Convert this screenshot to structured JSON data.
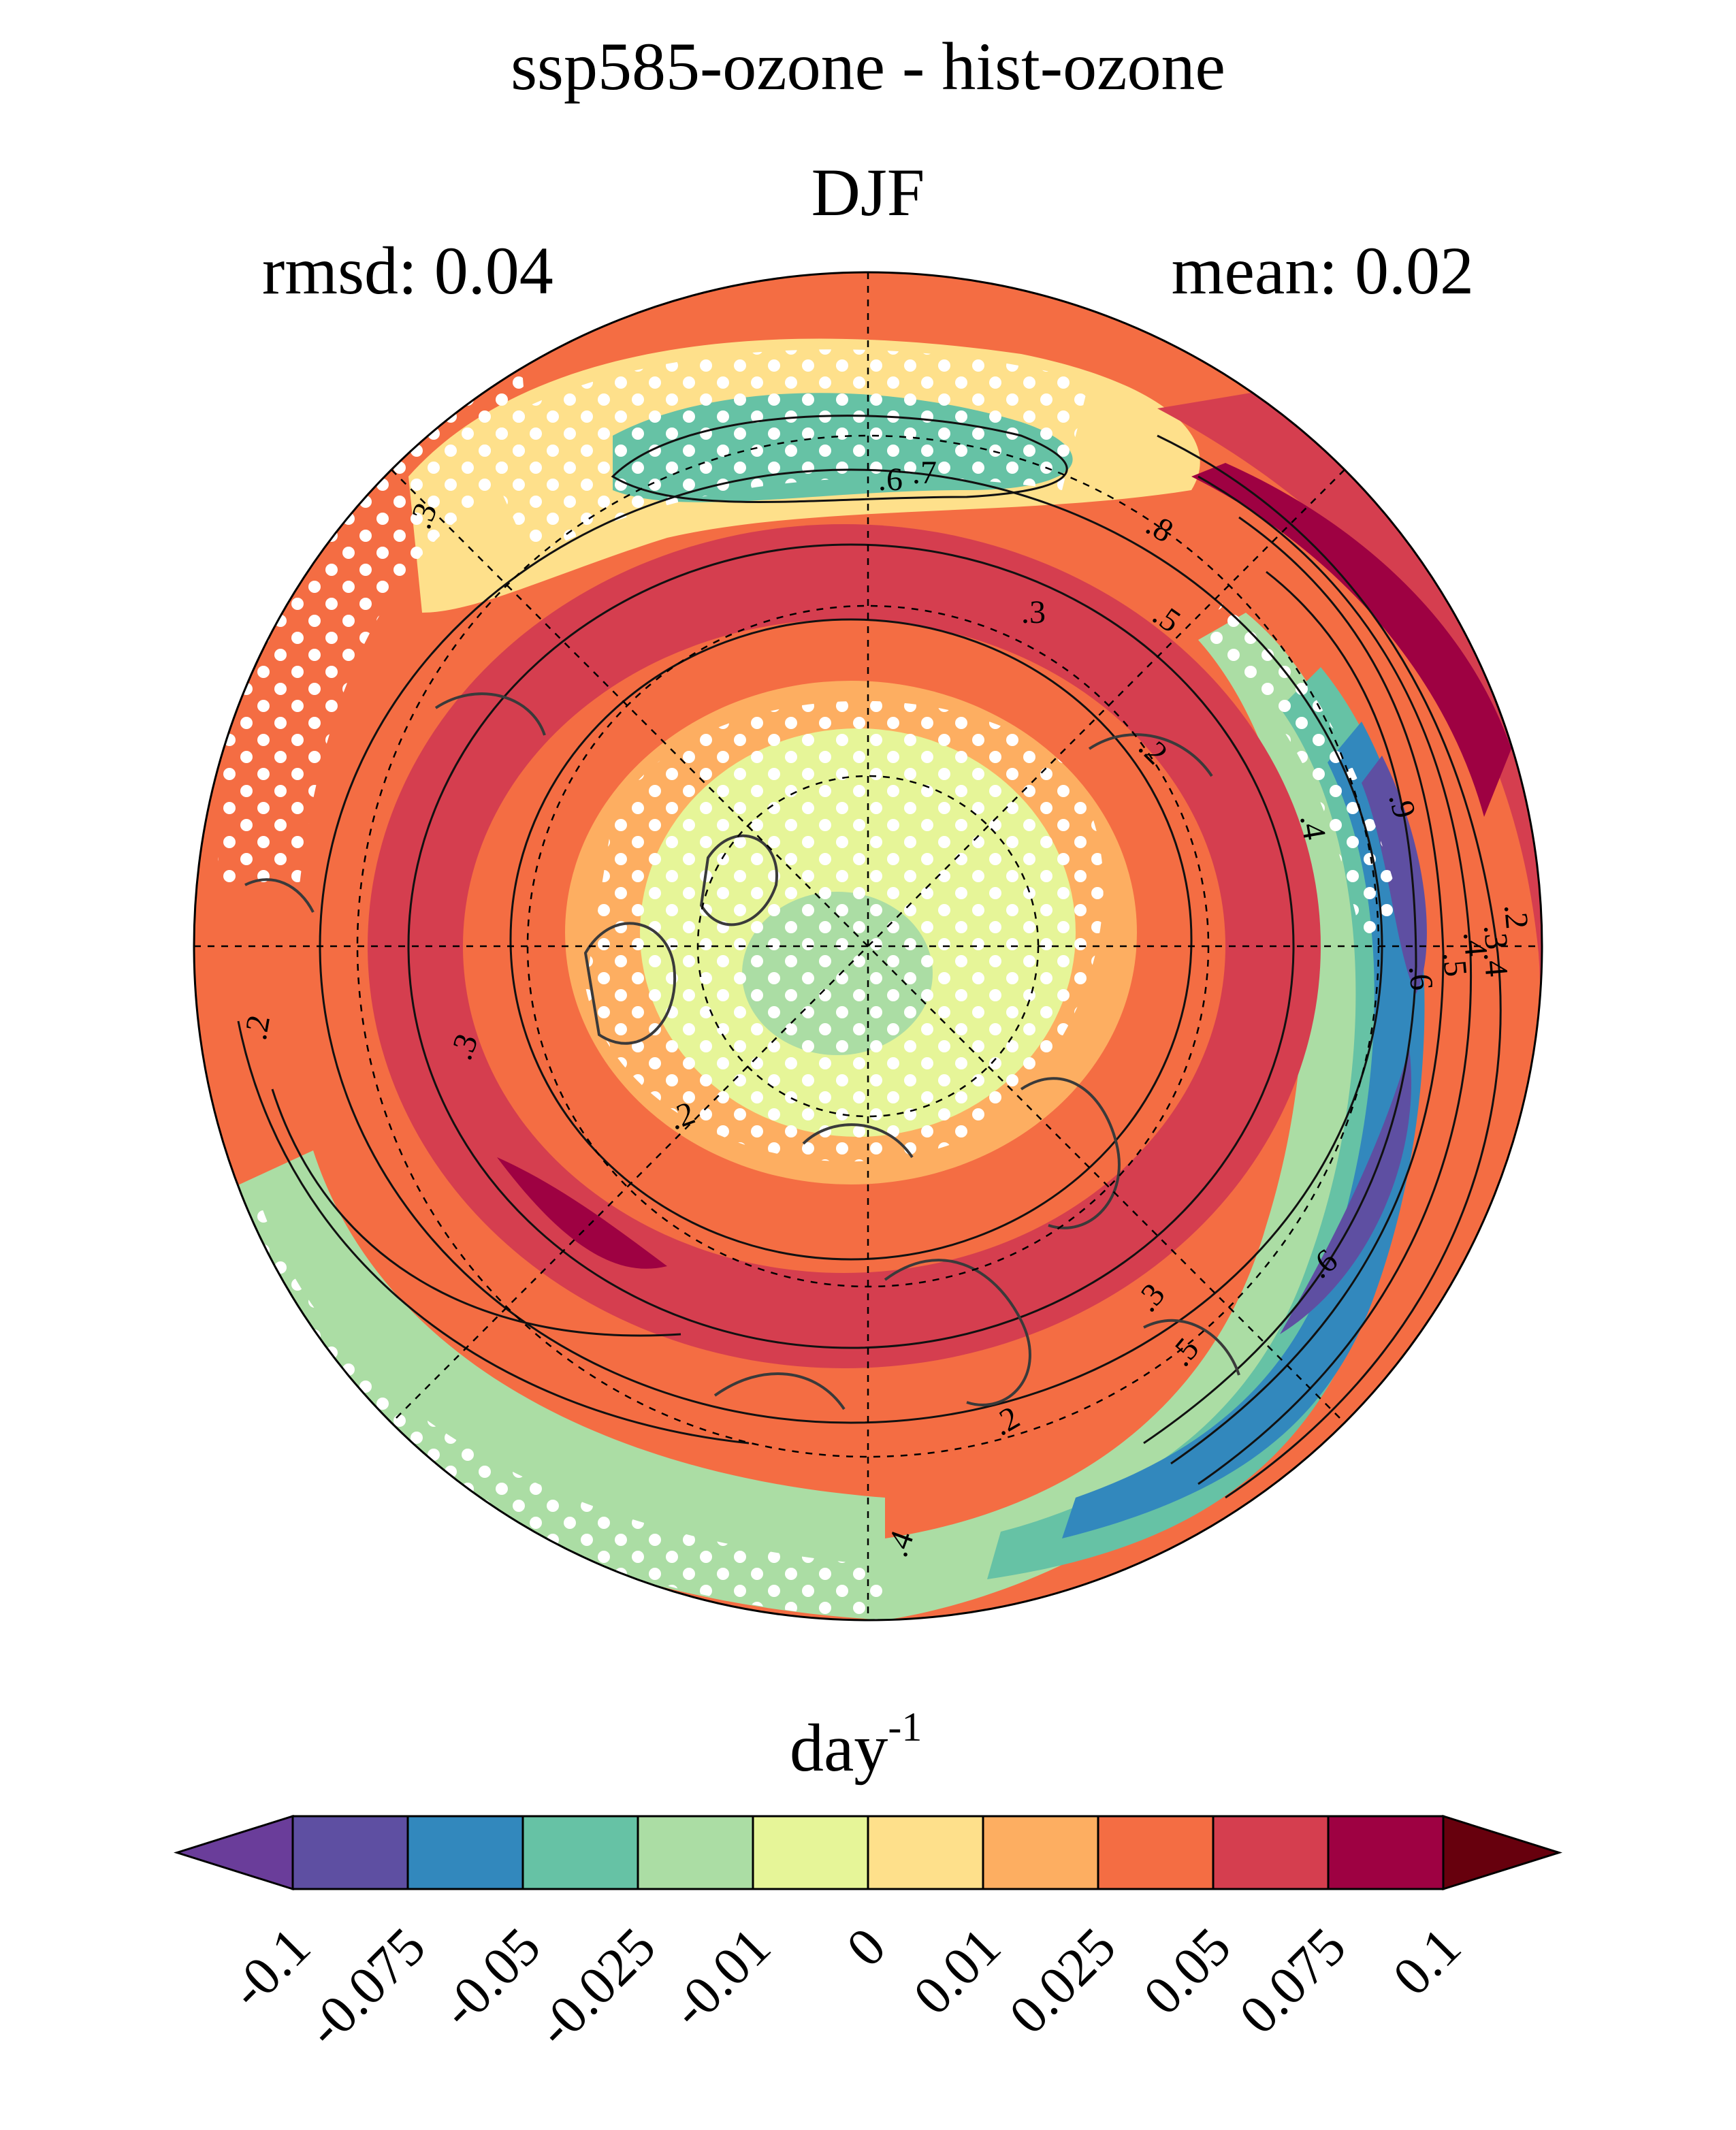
{
  "title": "ssp585-ozone - hist-ozone",
  "subtitle": "DJF",
  "stats": {
    "rmsd": "rmsd: 0.04",
    "mean": "mean: 0.02"
  },
  "colorbar": {
    "units_base": "day",
    "units_exp": "-1",
    "tick_labels": [
      "-0.1",
      "-0.075",
      "-0.05",
      "-0.025",
      "-0.01",
      "0",
      "0.01",
      "0.025",
      "0.05",
      "0.075",
      "0.1"
    ],
    "colors": [
      "#5e4fa2",
      "#3288bd",
      "#66c2a5",
      "#abdda4",
      "#e6f598",
      "#fee08b",
      "#fdae61",
      "#f46d43",
      "#d53e4f",
      "#9e0142"
    ],
    "under_color": "#6a3d9a",
    "over_color": "#67000d"
  },
  "map": {
    "projection": "north polar stereographic",
    "contour_labels": [
      ".3",
      ".6",
      ".7",
      ".8",
      ".3",
      ".5",
      ".2",
      ".9",
      ".4",
      ".6",
      ".5",
      ".4",
      ".2",
      ".3",
      ".4",
      ".6",
      ".5",
      ".3",
      ".2",
      ".4",
      ".2",
      ".3",
      ".2"
    ],
    "colors": {
      "background": "#f46d43",
      "ring_positive": "#d53e4f",
      "polar_cap": "#e6f598",
      "jet_negative": "#66c2a5",
      "jet_strong": "#3288bd",
      "coast": "#3a3a3a"
    }
  }
}
